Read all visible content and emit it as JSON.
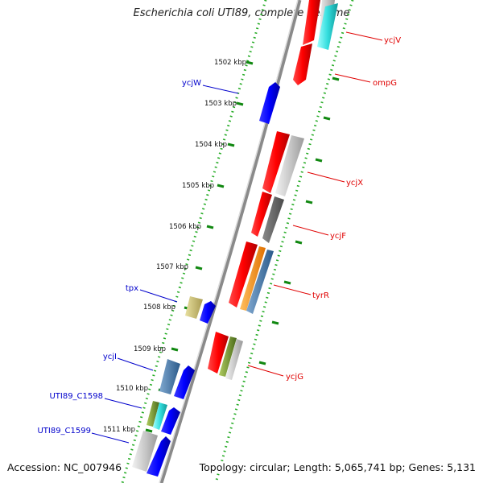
{
  "title": "Escherichia coli UTI89, complete genome",
  "footer": {
    "accession": "Accession: NC_007946",
    "summary": "Topology: circular; Length: 5,065,741 bp; Genes: 5,131"
  },
  "axis_ticks": [
    "1502 kbp",
    "1503 kbp",
    "1504 kbp",
    "1505 kbp",
    "1506 kbp",
    "1507 kbp",
    "1508 kbp",
    "1509 kbp",
    "1510 kbp",
    "1511 kbp"
  ],
  "genes_forward": [
    {
      "label": "ycjV",
      "color": "#e00000"
    },
    {
      "label": "ompG",
      "color": "#e00000"
    },
    {
      "label": "ycjX",
      "color": "#e00000"
    },
    {
      "label": "ycjF",
      "color": "#e00000"
    },
    {
      "label": "tyrR",
      "color": "#e00000"
    },
    {
      "label": "ycjG",
      "color": "#e00000"
    }
  ],
  "genes_reverse": [
    {
      "label": "ycjW",
      "color": "#0000cc"
    },
    {
      "label": "tpx",
      "color": "#0000cc"
    },
    {
      "label": "ycjI",
      "color": "#0000cc"
    },
    {
      "label": "UTI89_C1598",
      "color": "#0000cc"
    },
    {
      "label": "UTI89_C1599",
      "color": "#0000cc"
    }
  ],
  "colors": {
    "forward_label": "#e00000",
    "reverse_label": "#0000cc",
    "backbone": "#888888",
    "tick": "#22aa22"
  }
}
